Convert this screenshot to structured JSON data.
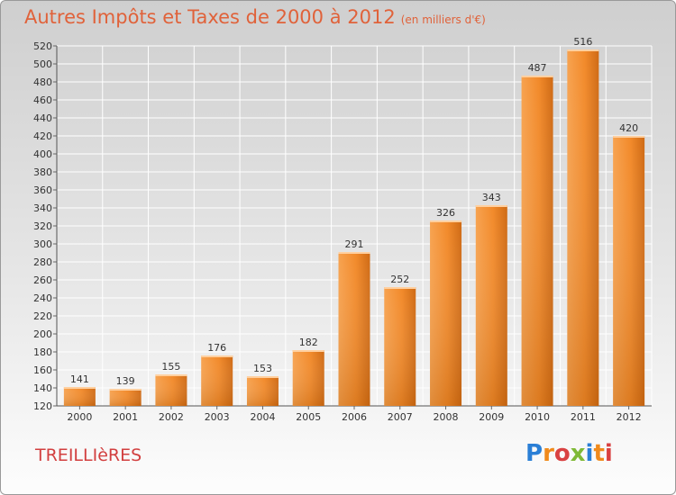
{
  "title": "Autres Impôts et Taxes de 2000 à 2012",
  "subtitle": "(en milliers d'€)",
  "city": "TREILLIèRES",
  "logo": {
    "letters": [
      "P",
      "r",
      "o",
      "x",
      "i",
      "t",
      "i"
    ],
    "colors": [
      "#2a7fd6",
      "#f08a1c",
      "#d94141",
      "#7fb936",
      "#2a7fd6",
      "#f08a1c",
      "#d94141"
    ]
  },
  "colors": {
    "bar": "#f28a2a",
    "bar_light": "#f7a24f",
    "bar_dark": "#cf6a14",
    "title": "#e0623a",
    "city": "#d23f3f"
  },
  "chart_data": {
    "type": "bar",
    "categories": [
      "2000",
      "2001",
      "2002",
      "2003",
      "2004",
      "2005",
      "2006",
      "2007",
      "2008",
      "2009",
      "2010",
      "2011",
      "2012"
    ],
    "values": [
      141,
      139,
      155,
      176,
      153,
      182,
      291,
      252,
      326,
      343,
      487,
      516,
      420
    ],
    "ylim": [
      120,
      520
    ],
    "yticks": [
      120,
      140,
      160,
      180,
      200,
      220,
      240,
      260,
      280,
      300,
      320,
      340,
      360,
      380,
      400,
      420,
      440,
      460,
      480,
      500,
      520
    ],
    "grid": true
  }
}
